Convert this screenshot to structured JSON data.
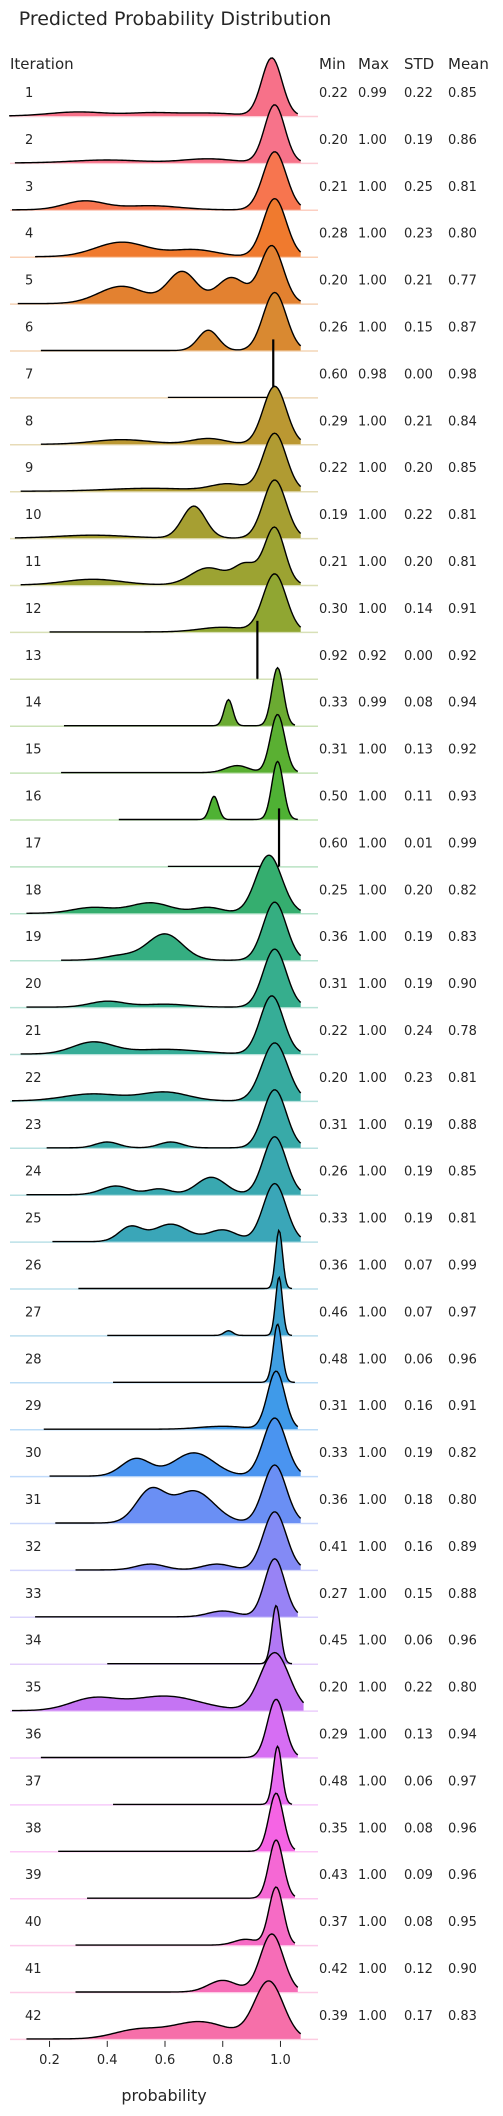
{
  "chart_data": {
    "type": "ridgeline",
    "title": "Predicted Probability Distribution",
    "xlabel": "probability",
    "xlim": [
      0.07,
      1.13
    ],
    "xticks": [
      "0.2",
      "0.4",
      "0.6",
      "0.8",
      "1.0"
    ],
    "xtick_values": [
      0.2,
      0.4,
      0.6,
      0.8,
      1.0
    ],
    "headers": {
      "iteration": "Iteration",
      "min": "Min",
      "max": "Max",
      "std": "STD",
      "mean": "Mean"
    },
    "iterations": [
      {
        "label": "1",
        "color": "#f77189",
        "min": "0.22",
        "max": "0.99",
        "std": "0.22",
        "mean": "0.85",
        "mode": 0.97,
        "modeWidth": 0.035,
        "lo": 0.06,
        "hi": 1.06,
        "bumps": [
          [
            0.3,
            0.07,
            0.1
          ],
          [
            0.55,
            0.05,
            0.08
          ],
          [
            0.75,
            0.05,
            0.1
          ]
        ]
      },
      {
        "label": "2",
        "color": "#f7738a",
        "min": "0.20",
        "max": "1.00",
        "std": "0.19",
        "mean": "0.86",
        "mode": 0.98,
        "modeWidth": 0.035,
        "lo": 0.08,
        "hi": 1.07,
        "bumps": [
          [
            0.4,
            0.05,
            0.12
          ],
          [
            0.75,
            0.07,
            0.09
          ]
        ]
      },
      {
        "label": "3",
        "color": "#f7754f",
        "min": "0.21",
        "max": "1.00",
        "std": "0.25",
        "mean": "0.81",
        "mode": 0.98,
        "modeWidth": 0.04,
        "lo": 0.07,
        "hi": 1.07,
        "bumps": [
          [
            0.32,
            0.15,
            0.07
          ],
          [
            0.55,
            0.07,
            0.1
          ]
        ]
      },
      {
        "label": "4",
        "color": "#f07a2e",
        "min": "0.28",
        "max": "1.00",
        "std": "0.23",
        "mean": "0.80",
        "mode": 0.98,
        "modeWidth": 0.04,
        "lo": 0.15,
        "hi": 1.07,
        "bumps": [
          [
            0.45,
            0.25,
            0.09
          ],
          [
            0.7,
            0.12,
            0.08
          ]
        ]
      },
      {
        "label": "5",
        "color": "#e38130",
        "min": "0.20",
        "max": "1.00",
        "std": "0.21",
        "mean": "0.77",
        "mode": 0.97,
        "modeWidth": 0.04,
        "lo": 0.09,
        "hi": 1.07,
        "bumps": [
          [
            0.45,
            0.3,
            0.08
          ],
          [
            0.66,
            0.55,
            0.05
          ],
          [
            0.83,
            0.45,
            0.05
          ]
        ]
      },
      {
        "label": "6",
        "color": "#d98931",
        "min": "0.26",
        "max": "1.00",
        "std": "0.15",
        "mean": "0.87",
        "mode": 0.98,
        "modeWidth": 0.04,
        "lo": 0.17,
        "hi": 1.07,
        "bumps": [
          [
            0.75,
            0.35,
            0.035
          ]
        ]
      },
      {
        "label": "7",
        "color": "#ce8f31",
        "min": "0.60",
        "max": "0.98",
        "std": "0.00",
        "mean": "0.98",
        "mode": 0.975,
        "modeWidth": 0.003,
        "lo": 0.61,
        "hi": 0.99,
        "bumps": []
      },
      {
        "label": "8",
        "color": "#bb9832",
        "min": "0.29",
        "max": "1.00",
        "std": "0.21",
        "mean": "0.84",
        "mode": 0.98,
        "modeWidth": 0.04,
        "lo": 0.17,
        "hi": 1.07,
        "bumps": [
          [
            0.45,
            0.08,
            0.1
          ],
          [
            0.75,
            0.1,
            0.06
          ]
        ]
      },
      {
        "label": "9",
        "color": "#b09b32",
        "min": "0.22",
        "max": "1.00",
        "std": "0.20",
        "mean": "0.85",
        "mode": 0.98,
        "modeWidth": 0.04,
        "lo": 0.1,
        "hi": 1.07,
        "bumps": [
          [
            0.55,
            0.05,
            0.15
          ],
          [
            0.82,
            0.12,
            0.06
          ]
        ]
      },
      {
        "label": "10",
        "color": "#a69f32",
        "min": "0.19",
        "max": "1.00",
        "std": "0.22",
        "mean": "0.81",
        "mode": 0.98,
        "modeWidth": 0.04,
        "lo": 0.08,
        "hi": 1.07,
        "bumps": [
          [
            0.35,
            0.05,
            0.12
          ],
          [
            0.7,
            0.55,
            0.04
          ]
        ]
      },
      {
        "label": "11",
        "color": "#9ca332",
        "min": "0.21",
        "max": "1.00",
        "std": "0.20",
        "mean": "0.81",
        "mode": 0.98,
        "modeWidth": 0.035,
        "lo": 0.1,
        "hi": 1.07,
        "bumps": [
          [
            0.35,
            0.1,
            0.1
          ],
          [
            0.75,
            0.3,
            0.06
          ],
          [
            0.88,
            0.35,
            0.04
          ]
        ]
      },
      {
        "label": "12",
        "color": "#90a632",
        "min": "0.30",
        "max": "1.00",
        "std": "0.14",
        "mean": "0.91",
        "mode": 0.98,
        "modeWidth": 0.04,
        "lo": 0.2,
        "hi": 1.07,
        "bumps": [
          [
            0.8,
            0.08,
            0.08
          ]
        ]
      },
      {
        "label": "13",
        "color": "#85a831",
        "min": "0.92",
        "max": "0.92",
        "std": "0.00",
        "mean": "0.92",
        "mode": 0.92,
        "modeWidth": 0.003,
        "lo": 0.919,
        "hi": 0.921,
        "bumps": []
      },
      {
        "label": "14",
        "color": "#6bab32",
        "min": "0.33",
        "max": "0.99",
        "std": "0.08",
        "mean": "0.94",
        "mode": 0.99,
        "modeWidth": 0.02,
        "lo": 0.25,
        "hi": 1.05,
        "bumps": [
          [
            0.82,
            0.45,
            0.015
          ]
        ]
      },
      {
        "label": "15",
        "color": "#5ab032",
        "min": "0.31",
        "max": "1.00",
        "std": "0.13",
        "mean": "0.92",
        "mode": 0.99,
        "modeWidth": 0.025,
        "lo": 0.24,
        "hi": 1.06,
        "bumps": [
          [
            0.85,
            0.12,
            0.04
          ]
        ]
      },
      {
        "label": "16",
        "color": "#4fb234",
        "min": "0.50",
        "max": "1.00",
        "std": "0.11",
        "mean": "0.93",
        "mode": 0.99,
        "modeWidth": 0.02,
        "lo": 0.44,
        "hi": 1.06,
        "bumps": [
          [
            0.77,
            0.4,
            0.015
          ]
        ]
      },
      {
        "label": "17",
        "color": "#36ad52",
        "min": "0.60",
        "max": "1.00",
        "std": "0.01",
        "mean": "0.99",
        "mode": 0.995,
        "modeWidth": 0.003,
        "lo": 0.61,
        "hi": 1.0,
        "bumps": []
      },
      {
        "label": "18",
        "color": "#35ae6f",
        "min": "0.25",
        "max": "1.00",
        "std": "0.20",
        "mean": "0.82",
        "mode": 0.96,
        "modeWidth": 0.045,
        "lo": 0.12,
        "hi": 1.07,
        "bumps": [
          [
            0.35,
            0.1,
            0.07
          ],
          [
            0.55,
            0.18,
            0.07
          ],
          [
            0.75,
            0.1,
            0.05
          ]
        ]
      },
      {
        "label": "19",
        "color": "#35ae81",
        "min": "0.36",
        "max": "1.00",
        "std": "0.19",
        "mean": "0.83",
        "mode": 0.98,
        "modeWidth": 0.04,
        "lo": 0.24,
        "hi": 1.07,
        "bumps": [
          [
            0.45,
            0.08,
            0.06
          ],
          [
            0.6,
            0.45,
            0.06
          ]
        ]
      },
      {
        "label": "20",
        "color": "#36ae8d",
        "min": "0.31",
        "max": "1.00",
        "std": "0.19",
        "mean": "0.90",
        "mode": 0.98,
        "modeWidth": 0.04,
        "lo": 0.12,
        "hi": 1.07,
        "bumps": [
          [
            0.4,
            0.1,
            0.06
          ],
          [
            0.6,
            0.05,
            0.08
          ]
        ]
      },
      {
        "label": "21",
        "color": "#36ad97",
        "min": "0.22",
        "max": "1.00",
        "std": "0.24",
        "mean": "0.78",
        "mode": 0.97,
        "modeWidth": 0.04,
        "lo": 0.1,
        "hi": 1.07,
        "bumps": [
          [
            0.35,
            0.2,
            0.07
          ],
          [
            0.6,
            0.08,
            0.12
          ]
        ]
      },
      {
        "label": "22",
        "color": "#37aba0",
        "min": "0.20",
        "max": "1.00",
        "std": "0.23",
        "mean": "0.81",
        "mode": 0.98,
        "modeWidth": 0.045,
        "lo": 0.07,
        "hi": 1.07,
        "bumps": [
          [
            0.35,
            0.12,
            0.1
          ],
          [
            0.6,
            0.15,
            0.08
          ]
        ]
      },
      {
        "label": "23",
        "color": "#38aaa8",
        "min": "0.31",
        "max": "1.00",
        "std": "0.19",
        "mean": "0.88",
        "mode": 0.98,
        "modeWidth": 0.04,
        "lo": 0.19,
        "hi": 1.07,
        "bumps": [
          [
            0.4,
            0.1,
            0.04
          ],
          [
            0.62,
            0.1,
            0.04
          ]
        ]
      },
      {
        "label": "24",
        "color": "#39a8b0",
        "min": "0.26",
        "max": "1.00",
        "std": "0.19",
        "mean": "0.85",
        "mode": 0.98,
        "modeWidth": 0.04,
        "lo": 0.12,
        "hi": 1.07,
        "bumps": [
          [
            0.43,
            0.15,
            0.05
          ],
          [
            0.58,
            0.1,
            0.04
          ],
          [
            0.76,
            0.3,
            0.05
          ]
        ]
      },
      {
        "label": "25",
        "color": "#3aa6b8",
        "min": "0.33",
        "max": "1.00",
        "std": "0.19",
        "mean": "0.81",
        "mode": 0.98,
        "modeWidth": 0.04,
        "lo": 0.21,
        "hi": 1.07,
        "bumps": [
          [
            0.48,
            0.25,
            0.04
          ],
          [
            0.62,
            0.3,
            0.06
          ],
          [
            0.8,
            0.2,
            0.05
          ]
        ]
      },
      {
        "label": "26",
        "color": "#3ba4c2",
        "min": "0.36",
        "max": "1.00",
        "std": "0.07",
        "mean": "0.99",
        "mode": 0.995,
        "modeWidth": 0.012,
        "lo": 0.3,
        "hi": 1.04,
        "bumps": []
      },
      {
        "label": "27",
        "color": "#3ca1ce",
        "min": "0.46",
        "max": "1.00",
        "std": "0.07",
        "mean": "0.97",
        "mode": 0.995,
        "modeWidth": 0.012,
        "lo": 0.4,
        "hi": 1.04,
        "bumps": [
          [
            0.82,
            0.08,
            0.015
          ]
        ]
      },
      {
        "label": "28",
        "color": "#3f9ee1",
        "min": "0.48",
        "max": "1.00",
        "std": "0.06",
        "mean": "0.96",
        "mode": 0.99,
        "modeWidth": 0.015,
        "lo": 0.42,
        "hi": 1.05,
        "bumps": []
      },
      {
        "label": "29",
        "color": "#3f9ae9",
        "min": "0.31",
        "max": "1.00",
        "std": "0.16",
        "mean": "0.91",
        "mode": 0.985,
        "modeWidth": 0.03,
        "lo": 0.18,
        "hi": 1.06,
        "bumps": [
          [
            0.8,
            0.05,
            0.08
          ]
        ]
      },
      {
        "label": "30",
        "color": "#4a94f0",
        "min": "0.33",
        "max": "1.00",
        "std": "0.19",
        "mean": "0.82",
        "mode": 0.98,
        "modeWidth": 0.04,
        "lo": 0.2,
        "hi": 1.07,
        "bumps": [
          [
            0.5,
            0.3,
            0.05
          ],
          [
            0.7,
            0.4,
            0.07
          ]
        ]
      },
      {
        "label": "31",
        "color": "#6a8ff4",
        "min": "0.36",
        "max": "1.00",
        "std": "0.18",
        "mean": "0.80",
        "mode": 0.98,
        "modeWidth": 0.04,
        "lo": 0.22,
        "hi": 1.07,
        "bumps": [
          [
            0.55,
            0.55,
            0.05
          ],
          [
            0.7,
            0.55,
            0.07
          ]
        ]
      },
      {
        "label": "32",
        "color": "#838af5",
        "min": "0.41",
        "max": "1.00",
        "std": "0.16",
        "mean": "0.89",
        "mode": 0.98,
        "modeWidth": 0.04,
        "lo": 0.29,
        "hi": 1.07,
        "bumps": [
          [
            0.55,
            0.1,
            0.05
          ],
          [
            0.78,
            0.1,
            0.05
          ]
        ]
      },
      {
        "label": "33",
        "color": "#9883f5",
        "min": "0.27",
        "max": "1.00",
        "std": "0.15",
        "mean": "0.88",
        "mode": 0.98,
        "modeWidth": 0.035,
        "lo": 0.15,
        "hi": 1.06,
        "bumps": [
          [
            0.8,
            0.1,
            0.05
          ]
        ]
      },
      {
        "label": "34",
        "color": "#b179f4",
        "min": "0.45",
        "max": "1.00",
        "std": "0.06",
        "mean": "0.96",
        "mode": 0.985,
        "modeWidth": 0.015,
        "lo": 0.4,
        "hi": 1.04,
        "bumps": []
      },
      {
        "label": "35",
        "color": "#c574f3",
        "min": "0.20",
        "max": "1.00",
        "std": "0.22",
        "mean": "0.80",
        "mode": 0.98,
        "modeWidth": 0.05,
        "lo": 0.07,
        "hi": 1.08,
        "bumps": [
          [
            0.35,
            0.2,
            0.08
          ],
          [
            0.6,
            0.25,
            0.12
          ]
        ]
      },
      {
        "label": "36",
        "color": "#d66ef3",
        "min": "0.29",
        "max": "1.00",
        "std": "0.13",
        "mean": "0.94",
        "mode": 0.985,
        "modeWidth": 0.03,
        "lo": 0.17,
        "hi": 1.06,
        "bumps": []
      },
      {
        "label": "37",
        "color": "#e86cf0",
        "min": "0.48",
        "max": "1.00",
        "std": "0.06",
        "mean": "0.97",
        "mode": 0.99,
        "modeWidth": 0.015,
        "lo": 0.42,
        "hi": 1.04,
        "bumps": []
      },
      {
        "label": "38",
        "color": "#f564e4",
        "min": "0.35",
        "max": "1.00",
        "std": "0.08",
        "mean": "0.96",
        "mode": 0.985,
        "modeWidth": 0.025,
        "lo": 0.23,
        "hi": 1.05,
        "bumps": []
      },
      {
        "label": "39",
        "color": "#f568d4",
        "min": "0.43",
        "max": "1.00",
        "std": "0.09",
        "mean": "0.96",
        "mode": 0.985,
        "modeWidth": 0.025,
        "lo": 0.33,
        "hi": 1.05,
        "bumps": []
      },
      {
        "label": "40",
        "color": "#f66bc5",
        "min": "0.37",
        "max": "1.00",
        "std": "0.08",
        "mean": "0.95",
        "mode": 0.985,
        "modeWidth": 0.025,
        "lo": 0.29,
        "hi": 1.05,
        "bumps": [
          [
            0.88,
            0.1,
            0.04
          ]
        ]
      },
      {
        "label": "41",
        "color": "#f66db7",
        "min": "0.42",
        "max": "1.00",
        "std": "0.12",
        "mean": "0.90",
        "mode": 0.97,
        "modeWidth": 0.04,
        "lo": 0.29,
        "hi": 1.06,
        "bumps": [
          [
            0.8,
            0.2,
            0.05
          ]
        ]
      },
      {
        "label": "42",
        "color": "#f66fa9",
        "min": "0.39",
        "max": "1.00",
        "std": "0.17",
        "mean": "0.83",
        "mode": 0.96,
        "modeWidth": 0.05,
        "lo": 0.12,
        "hi": 1.07,
        "bumps": [
          [
            0.5,
            0.15,
            0.08
          ],
          [
            0.72,
            0.3,
            0.1
          ]
        ]
      }
    ]
  }
}
